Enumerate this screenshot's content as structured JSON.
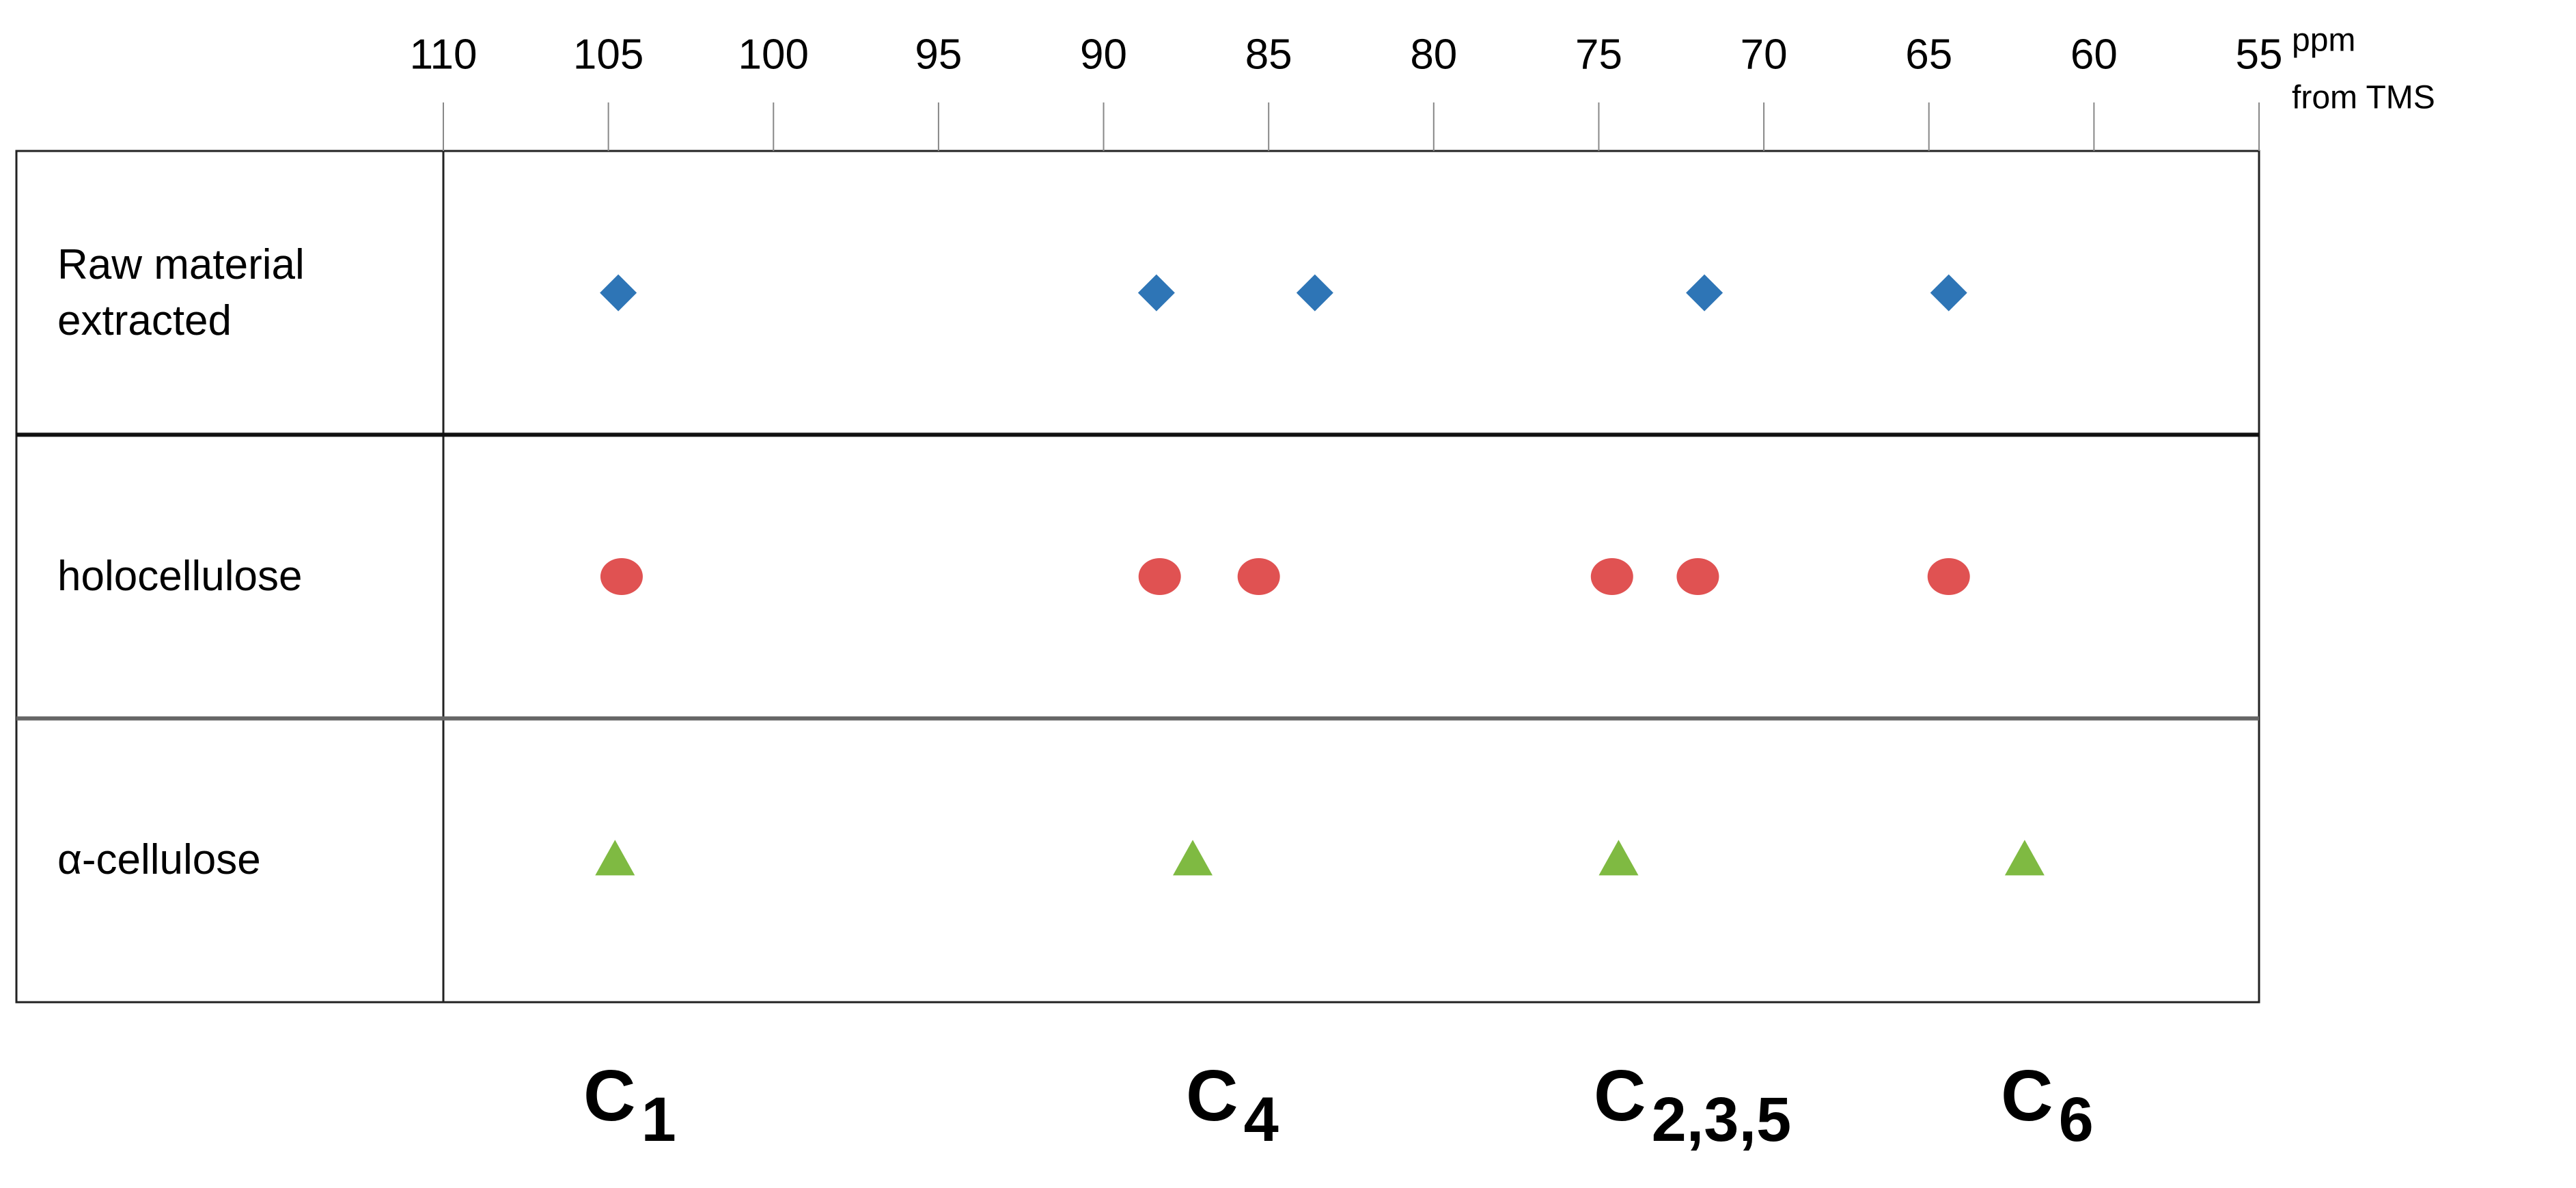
{
  "chart_data": {
    "type": "scatter",
    "x_label_lines": [
      "ppm",
      "from TMS"
    ],
    "xlim": [
      110,
      55
    ],
    "xticks": [
      110,
      105,
      100,
      95,
      90,
      85,
      80,
      75,
      70,
      65,
      60,
      55
    ],
    "series": [
      {
        "name": "Raw material extracted",
        "color": "#2e75b6",
        "marker": "diamond",
        "values": [
          104.7,
          88.4,
          83.6,
          71.8,
          64.4
        ]
      },
      {
        "name": "holocellulose",
        "color": "#e05252",
        "marker": "circle",
        "values": [
          104.6,
          88.3,
          85.3,
          74.6,
          72.0,
          64.4
        ]
      },
      {
        "name": "α-cellulose",
        "color": "#7fba42",
        "marker": "triangle",
        "values": [
          104.8,
          87.3,
          74.4,
          62.1
        ]
      }
    ],
    "annotations": [
      {
        "text": "C",
        "sub": "1"
      },
      {
        "text": "C",
        "sub": "4"
      },
      {
        "text": "C",
        "sub": "2,3,5"
      },
      {
        "text": "C",
        "sub": "6"
      }
    ]
  }
}
